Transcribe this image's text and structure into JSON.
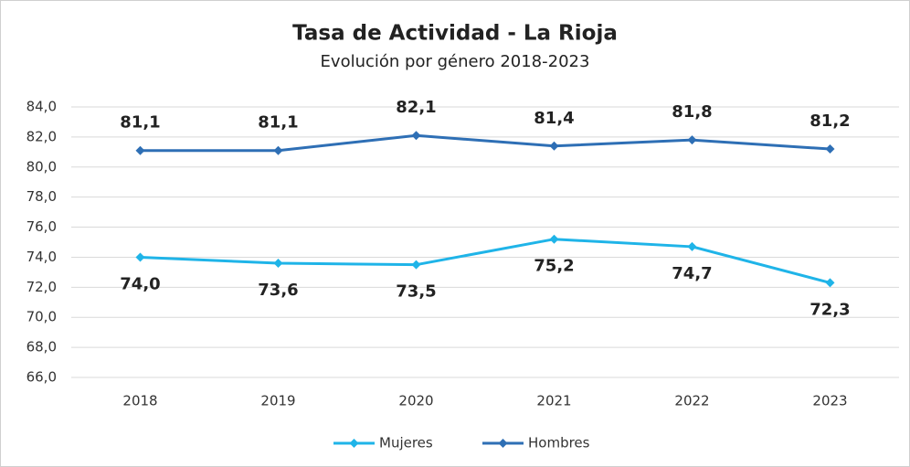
{
  "chart_data": {
    "type": "line",
    "title": "Tasa de Actividad - La Rioja",
    "subtitle": "Evolución por género 2018-2023",
    "categories": [
      "2018",
      "2019",
      "2020",
      "2021",
      "2022",
      "2023"
    ],
    "series": [
      {
        "name": "Mujeres",
        "color": "#1fb4e8",
        "values": [
          74.0,
          73.6,
          73.5,
          75.2,
          74.7,
          72.3
        ],
        "value_labels": [
          "74,0",
          "73,6",
          "73,5",
          "75,2",
          "74,7",
          "72,3"
        ]
      },
      {
        "name": "Hombres",
        "color": "#2e6fb5",
        "values": [
          81.1,
          81.1,
          82.1,
          81.4,
          81.8,
          81.2
        ],
        "value_labels": [
          "81,1",
          "81,1",
          "82,1",
          "81,4",
          "81,8",
          "81,2"
        ]
      }
    ],
    "ylim": [
      66,
      84
    ],
    "yticks": [
      {
        "value": 66,
        "label": "66,0"
      },
      {
        "value": 68,
        "label": "68,0"
      },
      {
        "value": 70,
        "label": "70,0"
      },
      {
        "value": 72,
        "label": "72,0"
      },
      {
        "value": 74,
        "label": "74,0"
      },
      {
        "value": 76,
        "label": "76,0"
      },
      {
        "value": 78,
        "label": "78,0"
      },
      {
        "value": 80,
        "label": "80,0"
      },
      {
        "value": 82,
        "label": "82,0"
      },
      {
        "value": 84,
        "label": "84,0"
      }
    ],
    "grid": true,
    "legend": "bottom"
  }
}
